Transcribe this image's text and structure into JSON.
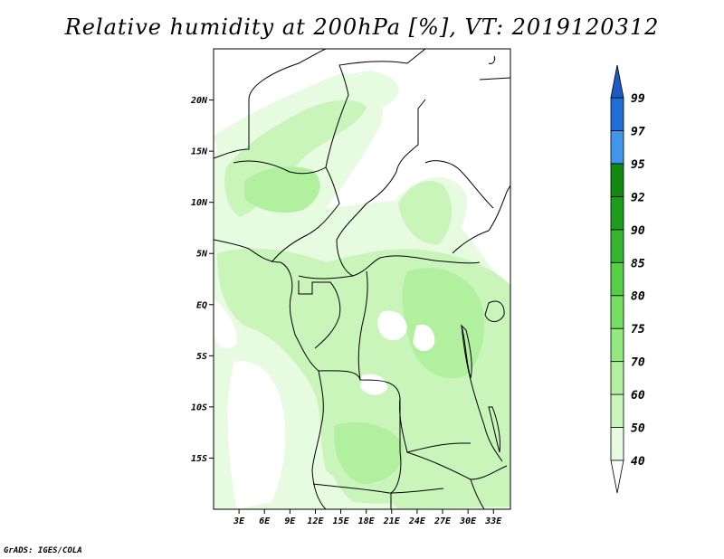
{
  "title": "Relative humidity at 200hPa [%], VT: 2019120312",
  "credit": "GrADS: IGES/COLA",
  "map": {
    "lon_range": [
      0,
      35
    ],
    "lat_range": [
      -20,
      25
    ],
    "lat_ticks": [
      {
        "value": 20,
        "label": "20N"
      },
      {
        "value": 15,
        "label": "15N"
      },
      {
        "value": 10,
        "label": "10N"
      },
      {
        "value": 5,
        "label": "5N"
      },
      {
        "value": 0,
        "label": "EQ"
      },
      {
        "value": -5,
        "label": "5S"
      },
      {
        "value": -10,
        "label": "10S"
      },
      {
        "value": -15,
        "label": "15S"
      }
    ],
    "lon_ticks": [
      {
        "value": 3,
        "label": "3E"
      },
      {
        "value": 6,
        "label": "6E"
      },
      {
        "value": 9,
        "label": "9E"
      },
      {
        "value": 12,
        "label": "12E"
      },
      {
        "value": 15,
        "label": "15E"
      },
      {
        "value": 18,
        "label": "18E"
      },
      {
        "value": 21,
        "label": "21E"
      },
      {
        "value": 24,
        "label": "24E"
      },
      {
        "value": 27,
        "label": "27E"
      },
      {
        "value": 30,
        "label": "30E"
      },
      {
        "value": 33,
        "label": "33E"
      }
    ]
  },
  "colorbar": {
    "levels": [
      {
        "label": "40",
        "color": "#ffffff"
      },
      {
        "label": "50",
        "color": "#e6fbe0"
      },
      {
        "label": "60",
        "color": "#c9f5bb"
      },
      {
        "label": "70",
        "color": "#b1f09f"
      },
      {
        "label": "75",
        "color": "#94e97e"
      },
      {
        "label": "80",
        "color": "#76df63"
      },
      {
        "label": "85",
        "color": "#56cf47"
      },
      {
        "label": "90",
        "color": "#36b531"
      },
      {
        "label": "92",
        "color": "#1e9d1c"
      },
      {
        "label": "95",
        "color": "#128a12"
      },
      {
        "label": "97",
        "color": "#3f96ea"
      },
      {
        "label": "99",
        "color": "#1f6ed6"
      }
    ],
    "top_arrow_color": "#1a5cc4",
    "bottom_arrow_color": "#ffffff"
  }
}
